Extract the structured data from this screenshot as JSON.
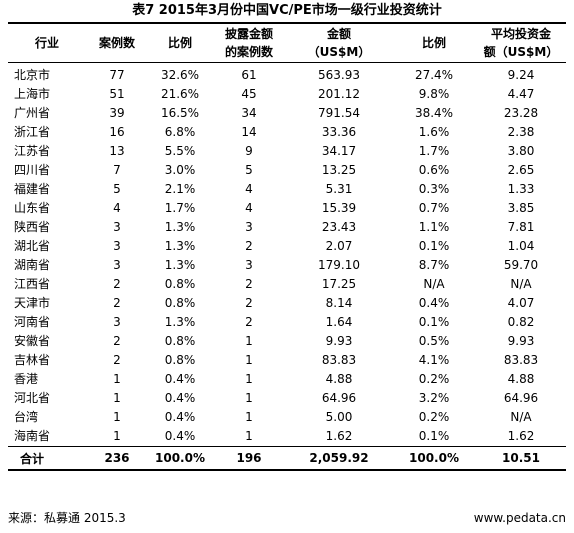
{
  "title": "表7    2015年3月份中国VC/PE市场一级行业投资统计",
  "headers": [
    [
      "行业"
    ],
    [
      "案例数"
    ],
    [
      "比例"
    ],
    [
      "披露金额",
      "的案例数"
    ],
    [
      "金额",
      "（US$M）"
    ],
    [
      "比例"
    ],
    [
      "平均投资金",
      "额（US$M）"
    ]
  ],
  "rows": [
    [
      "北京市",
      "77",
      "32.6%",
      "61",
      "563.93",
      "27.4%",
      "9.24"
    ],
    [
      "上海市",
      "51",
      "21.6%",
      "45",
      "201.12",
      "9.8%",
      "4.47"
    ],
    [
      "广州省",
      "39",
      "16.5%",
      "34",
      "791.54",
      "38.4%",
      "23.28"
    ],
    [
      "浙江省",
      "16",
      "6.8%",
      "14",
      "33.36",
      "1.6%",
      "2.38"
    ],
    [
      "江苏省",
      "13",
      "5.5%",
      "9",
      "34.17",
      "1.7%",
      "3.80"
    ],
    [
      "四川省",
      "7",
      "3.0%",
      "5",
      "13.25",
      "0.6%",
      "2.65"
    ],
    [
      "福建省",
      "5",
      "2.1%",
      "4",
      "5.31",
      "0.3%",
      "1.33"
    ],
    [
      "山东省",
      "4",
      "1.7%",
      "4",
      "15.39",
      "0.7%",
      "3.85"
    ],
    [
      "陕西省",
      "3",
      "1.3%",
      "3",
      "23.43",
      "1.1%",
      "7.81"
    ],
    [
      "湖北省",
      "3",
      "1.3%",
      "2",
      "2.07",
      "0.1%",
      "1.04"
    ],
    [
      "湖南省",
      "3",
      "1.3%",
      "3",
      "179.10",
      "8.7%",
      "59.70"
    ],
    [
      "江西省",
      "2",
      "0.8%",
      "2",
      "17.25",
      "N/A",
      "N/A"
    ],
    [
      "天津市",
      "2",
      "0.8%",
      "2",
      "8.14",
      "0.4%",
      "4.07"
    ],
    [
      "河南省",
      "3",
      "1.3%",
      "2",
      "1.64",
      "0.1%",
      "0.82"
    ],
    [
      "安徽省",
      "2",
      "0.8%",
      "1",
      "9.93",
      "0.5%",
      "9.93"
    ],
    [
      "吉林省",
      "2",
      "0.8%",
      "1",
      "83.83",
      "4.1%",
      "83.83"
    ],
    [
      "香港",
      "1",
      "0.4%",
      "1",
      "4.88",
      "0.2%",
      "4.88"
    ],
    [
      "河北省",
      "1",
      "0.4%",
      "1",
      "64.96",
      "3.2%",
      "64.96"
    ],
    [
      "台湾",
      "1",
      "0.4%",
      "1",
      "5.00",
      "0.2%",
      "N/A"
    ],
    [
      "海南省",
      "1",
      "0.4%",
      "1",
      "1.62",
      "0.1%",
      "1.62"
    ]
  ],
  "total": [
    "合计",
    "236",
    "100.0%",
    "196",
    "2,059.92",
    "100.0%",
    "10.51"
  ],
  "footer": {
    "source": "来源：私募通    2015.3",
    "site": "www.pedata.cn"
  }
}
